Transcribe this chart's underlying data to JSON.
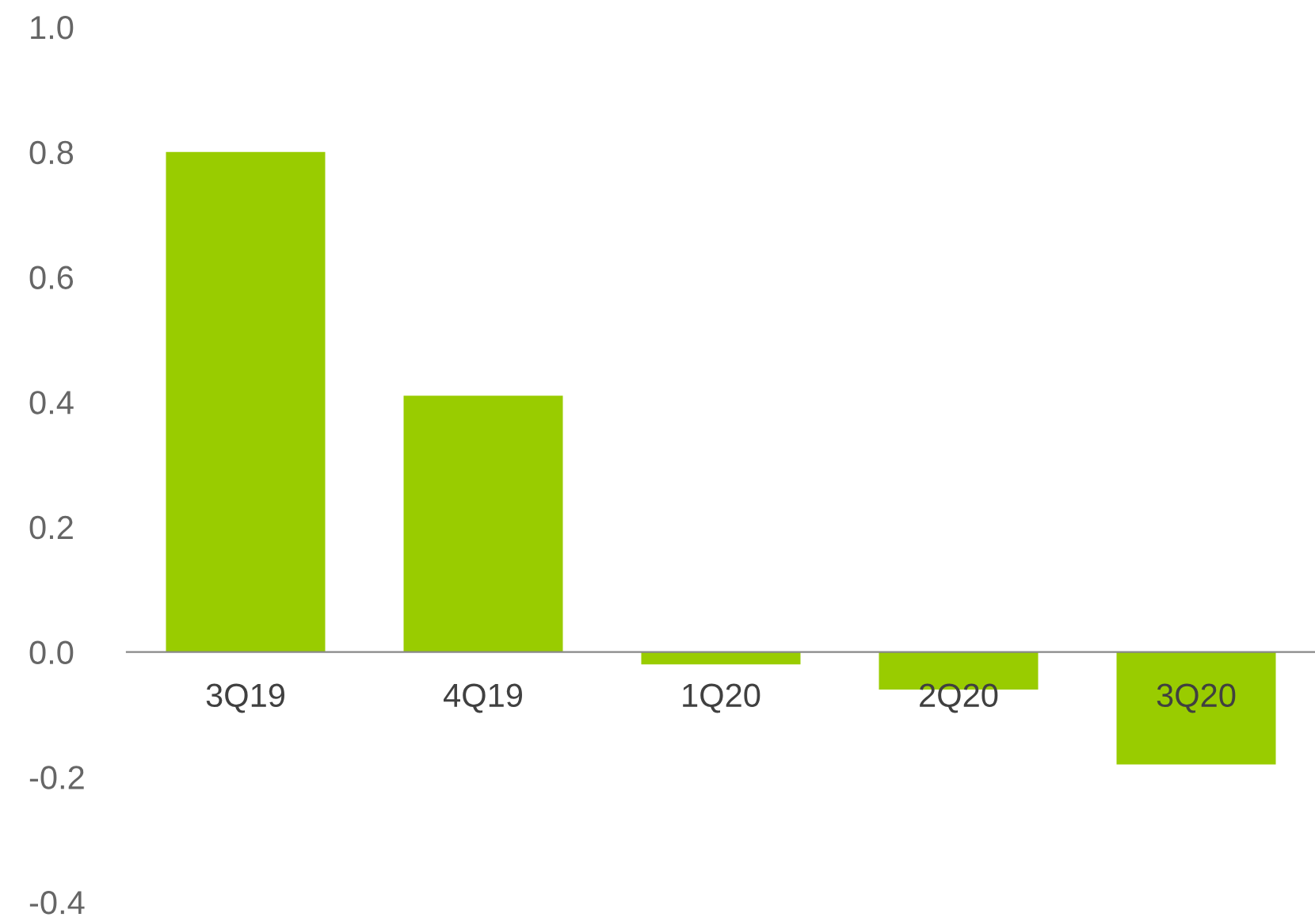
{
  "chart_data": {
    "type": "bar",
    "categories": [
      "3Q19",
      "4Q19",
      "1Q20",
      "2Q20",
      "3Q20"
    ],
    "values": [
      0.8,
      0.41,
      -0.02,
      -0.06,
      -0.18
    ],
    "color": "#99cc00",
    "ylim": [
      -0.4,
      1.0
    ],
    "yticks": [
      {
        "value": -0.4,
        "label": "-0.4"
      },
      {
        "value": -0.2,
        "label": "-0.2"
      },
      {
        "value": 0,
        "label": "0.0"
      },
      {
        "value": 0.2,
        "label": "0.2"
      },
      {
        "value": 0.4,
        "label": "0.4"
      },
      {
        "value": 0.6,
        "label": "0.6"
      },
      {
        "value": 0.8,
        "label": "0.8"
      },
      {
        "value": 1.0,
        "label": "1.0"
      }
    ],
    "grid": false,
    "legend": false
  }
}
